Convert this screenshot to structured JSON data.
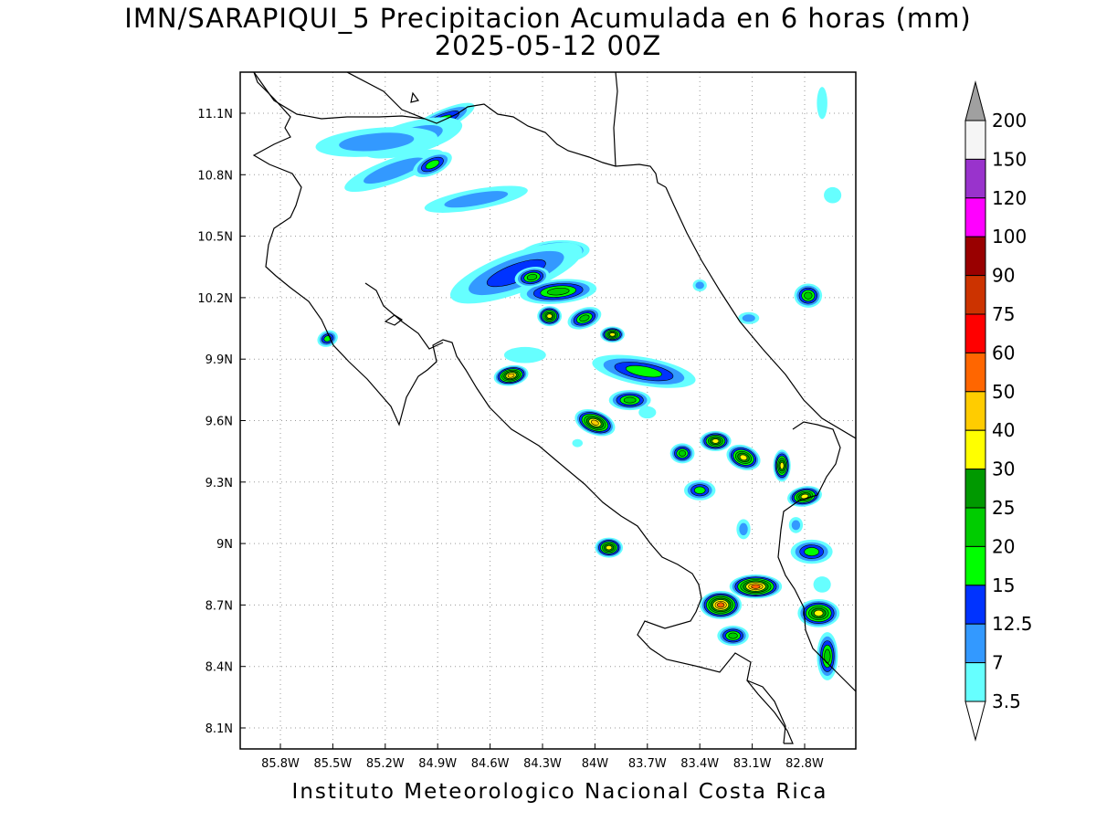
{
  "title_line1": "IMN/SARAPIQUI_5 Precipitacion Acumulada en 6 horas (mm)",
  "title_line2": "2025-05-12 00Z",
  "footer": "Instituto Meteorologico Nacional Costa Rica",
  "map": {
    "lon_range": [
      -86.0,
      -83.0
    ],
    "lat_range": [
      8.0,
      11.2
    ],
    "x_ticks": [
      {
        "lon": -85.8,
        "label": "85.8W"
      },
      {
        "lon": -85.5,
        "label": "85.5W"
      },
      {
        "lon": -85.2,
        "label": "85.2W"
      },
      {
        "lon": -84.9,
        "label": "84.9W"
      },
      {
        "lon": -84.6,
        "label": "84.6W"
      },
      {
        "lon": -84.3,
        "label": "84.3W"
      },
      {
        "lon": -84.0,
        "label": "84W"
      },
      {
        "lon": -83.7,
        "label": "83.7W"
      },
      {
        "lon": -83.4,
        "label": "83.4W"
      },
      {
        "lon": -83.1,
        "label": "83.1W"
      },
      {
        "lon": -82.8,
        "label": "82.8W"
      }
    ],
    "y_ticks": [
      {
        "lat": 11.1,
        "label": "11.1N"
      },
      {
        "lat": 10.8,
        "label": "10.8N"
      },
      {
        "lat": 10.5,
        "label": "10.5N"
      },
      {
        "lat": 10.2,
        "label": "10.2N"
      },
      {
        "lat": 9.9,
        "label": "9.9N"
      },
      {
        "lat": 9.6,
        "label": "9.6N"
      },
      {
        "lat": 9.3,
        "label": "9.3N"
      },
      {
        "lat": 9.0,
        "label": "9N"
      },
      {
        "lat": 8.7,
        "label": "8.7N"
      },
      {
        "lat": 8.4,
        "label": "8.4N"
      },
      {
        "lat": 8.1,
        "label": "8.1N"
      }
    ],
    "grid": true
  },
  "colorbar": {
    "levels": [
      "3.5",
      "7",
      "12.5",
      "15",
      "20",
      "25",
      "30",
      "40",
      "50",
      "60",
      "75",
      "90",
      "100",
      "120",
      "150",
      "200"
    ],
    "colors": [
      "#66ffff",
      "#3399ff",
      "#0033ff",
      "#00ff00",
      "#00cc00",
      "#009900",
      "#ffff00",
      "#ffcc00",
      "#ff6600",
      "#ff0000",
      "#cc3300",
      "#990000",
      "#ff00ff",
      "#9933cc",
      "#f5f5f5"
    ],
    "extend_low_color": "#ffffff",
    "extend_high_color": "#a0a0a0"
  },
  "precip_cells": [
    {
      "lon": -84.89,
      "lat": 11.06,
      "rx": 0.22,
      "ry": 0.05,
      "rot": -25,
      "level": 4
    },
    {
      "lon": -85.05,
      "lat": 10.98,
      "rx": 0.3,
      "ry": 0.08,
      "rot": -15,
      "level": 2
    },
    {
      "lon": -85.25,
      "lat": 10.96,
      "rx": 0.35,
      "ry": 0.07,
      "rot": -5,
      "level": 2
    },
    {
      "lon": -85.15,
      "lat": 10.82,
      "rx": 0.3,
      "ry": 0.06,
      "rot": -20,
      "level": 2
    },
    {
      "lon": -84.93,
      "lat": 10.85,
      "rx": 0.12,
      "ry": 0.05,
      "rot": -25,
      "level": 4
    },
    {
      "lon": -84.68,
      "lat": 10.68,
      "rx": 0.3,
      "ry": 0.05,
      "rot": -10,
      "level": 2
    },
    {
      "lon": -84.23,
      "lat": 10.42,
      "rx": 0.2,
      "ry": 0.06,
      "rot": -5,
      "level": 5
    },
    {
      "lon": -84.45,
      "lat": 10.32,
      "rx": 0.4,
      "ry": 0.1,
      "rot": -20,
      "level": 3
    },
    {
      "lon": -84.21,
      "lat": 10.23,
      "rx": 0.22,
      "ry": 0.06,
      "rot": -5,
      "level": 5
    },
    {
      "lon": -84.36,
      "lat": 10.3,
      "rx": 0.1,
      "ry": 0.05,
      "rot": -10,
      "level": 5
    },
    {
      "lon": -84.26,
      "lat": 10.11,
      "rx": 0.07,
      "ry": 0.05,
      "rot": 0,
      "level": 7
    },
    {
      "lon": -83.9,
      "lat": 10.02,
      "rx": 0.07,
      "ry": 0.04,
      "rot": 0,
      "level": 7
    },
    {
      "lon": -84.06,
      "lat": 10.1,
      "rx": 0.1,
      "ry": 0.05,
      "rot": -20,
      "level": 5
    },
    {
      "lon": -83.72,
      "lat": 9.84,
      "rx": 0.3,
      "ry": 0.07,
      "rot": 10,
      "level": 4
    },
    {
      "lon": -83.8,
      "lat": 9.7,
      "rx": 0.12,
      "ry": 0.05,
      "rot": 0,
      "level": 5
    },
    {
      "lon": -84.48,
      "lat": 9.82,
      "rx": 0.1,
      "ry": 0.05,
      "rot": -10,
      "level": 8
    },
    {
      "lon": -84.0,
      "lat": 9.59,
      "rx": 0.12,
      "ry": 0.06,
      "rot": 20,
      "level": 8
    },
    {
      "lon": -83.31,
      "lat": 9.5,
      "rx": 0.09,
      "ry": 0.05,
      "rot": 0,
      "level": 7
    },
    {
      "lon": -83.15,
      "lat": 9.42,
      "rx": 0.1,
      "ry": 0.06,
      "rot": 20,
      "level": 7
    },
    {
      "lon": -82.93,
      "lat": 9.38,
      "rx": 0.05,
      "ry": 0.08,
      "rot": 0,
      "level": 7
    },
    {
      "lon": -82.8,
      "lat": 9.23,
      "rx": 0.1,
      "ry": 0.05,
      "rot": -10,
      "level": 7
    },
    {
      "lon": -83.92,
      "lat": 8.98,
      "rx": 0.08,
      "ry": 0.05,
      "rot": 0,
      "level": 7
    },
    {
      "lon": -83.28,
      "lat": 8.7,
      "rx": 0.12,
      "ry": 0.07,
      "rot": 0,
      "level": 9
    },
    {
      "lon": -83.08,
      "lat": 8.79,
      "rx": 0.15,
      "ry": 0.06,
      "rot": 0,
      "level": 9
    },
    {
      "lon": -82.72,
      "lat": 8.66,
      "rx": 0.12,
      "ry": 0.07,
      "rot": 0,
      "level": 7
    },
    {
      "lon": -82.67,
      "lat": 8.45,
      "rx": 0.06,
      "ry": 0.12,
      "rot": 0,
      "level": 5
    },
    {
      "lon": -82.76,
      "lat": 8.96,
      "rx": 0.12,
      "ry": 0.06,
      "rot": 0,
      "level": 4
    },
    {
      "lon": -83.21,
      "lat": 8.55,
      "rx": 0.09,
      "ry": 0.05,
      "rot": 0,
      "level": 5
    },
    {
      "lon": -83.5,
      "lat": 9.44,
      "rx": 0.07,
      "ry": 0.05,
      "rot": 0,
      "level": 5
    },
    {
      "lon": -83.4,
      "lat": 9.26,
      "rx": 0.09,
      "ry": 0.05,
      "rot": 0,
      "level": 4
    },
    {
      "lon": -82.78,
      "lat": 10.21,
      "rx": 0.08,
      "ry": 0.06,
      "rot": 0,
      "level": 5
    },
    {
      "lon": -85.53,
      "lat": 10.0,
      "rx": 0.06,
      "ry": 0.04,
      "rot": -20,
      "level": 4
    },
    {
      "lon": -84.1,
      "lat": 9.49,
      "rx": 0.03,
      "ry": 0.02,
      "rot": 0,
      "level": 1
    },
    {
      "lon": -83.4,
      "lat": 10.26,
      "rx": 0.04,
      "ry": 0.03,
      "rot": 0,
      "level": 2
    },
    {
      "lon": -83.12,
      "lat": 10.1,
      "rx": 0.06,
      "ry": 0.03,
      "rot": 0,
      "level": 2
    },
    {
      "lon": -82.85,
      "lat": 9.09,
      "rx": 0.04,
      "ry": 0.04,
      "rot": 0,
      "level": 2
    },
    {
      "lon": -83.15,
      "lat": 9.07,
      "rx": 0.04,
      "ry": 0.05,
      "rot": 0,
      "level": 2
    },
    {
      "lon": -84.4,
      "lat": 9.92,
      "rx": 0.12,
      "ry": 0.04,
      "rot": 0,
      "level": 1
    },
    {
      "lon": -83.7,
      "lat": 9.64,
      "rx": 0.05,
      "ry": 0.03,
      "rot": 0,
      "level": 1
    },
    {
      "lon": -82.7,
      "lat": 8.8,
      "rx": 0.05,
      "ry": 0.04,
      "rot": 0,
      "level": 1
    },
    {
      "lon": -82.64,
      "lat": 10.7,
      "rx": 0.05,
      "ry": 0.04,
      "rot": 0,
      "level": 1
    },
    {
      "lon": -82.7,
      "lat": 11.15,
      "rx": 0.03,
      "ry": 0.08,
      "rot": 0,
      "level": 1
    }
  ]
}
